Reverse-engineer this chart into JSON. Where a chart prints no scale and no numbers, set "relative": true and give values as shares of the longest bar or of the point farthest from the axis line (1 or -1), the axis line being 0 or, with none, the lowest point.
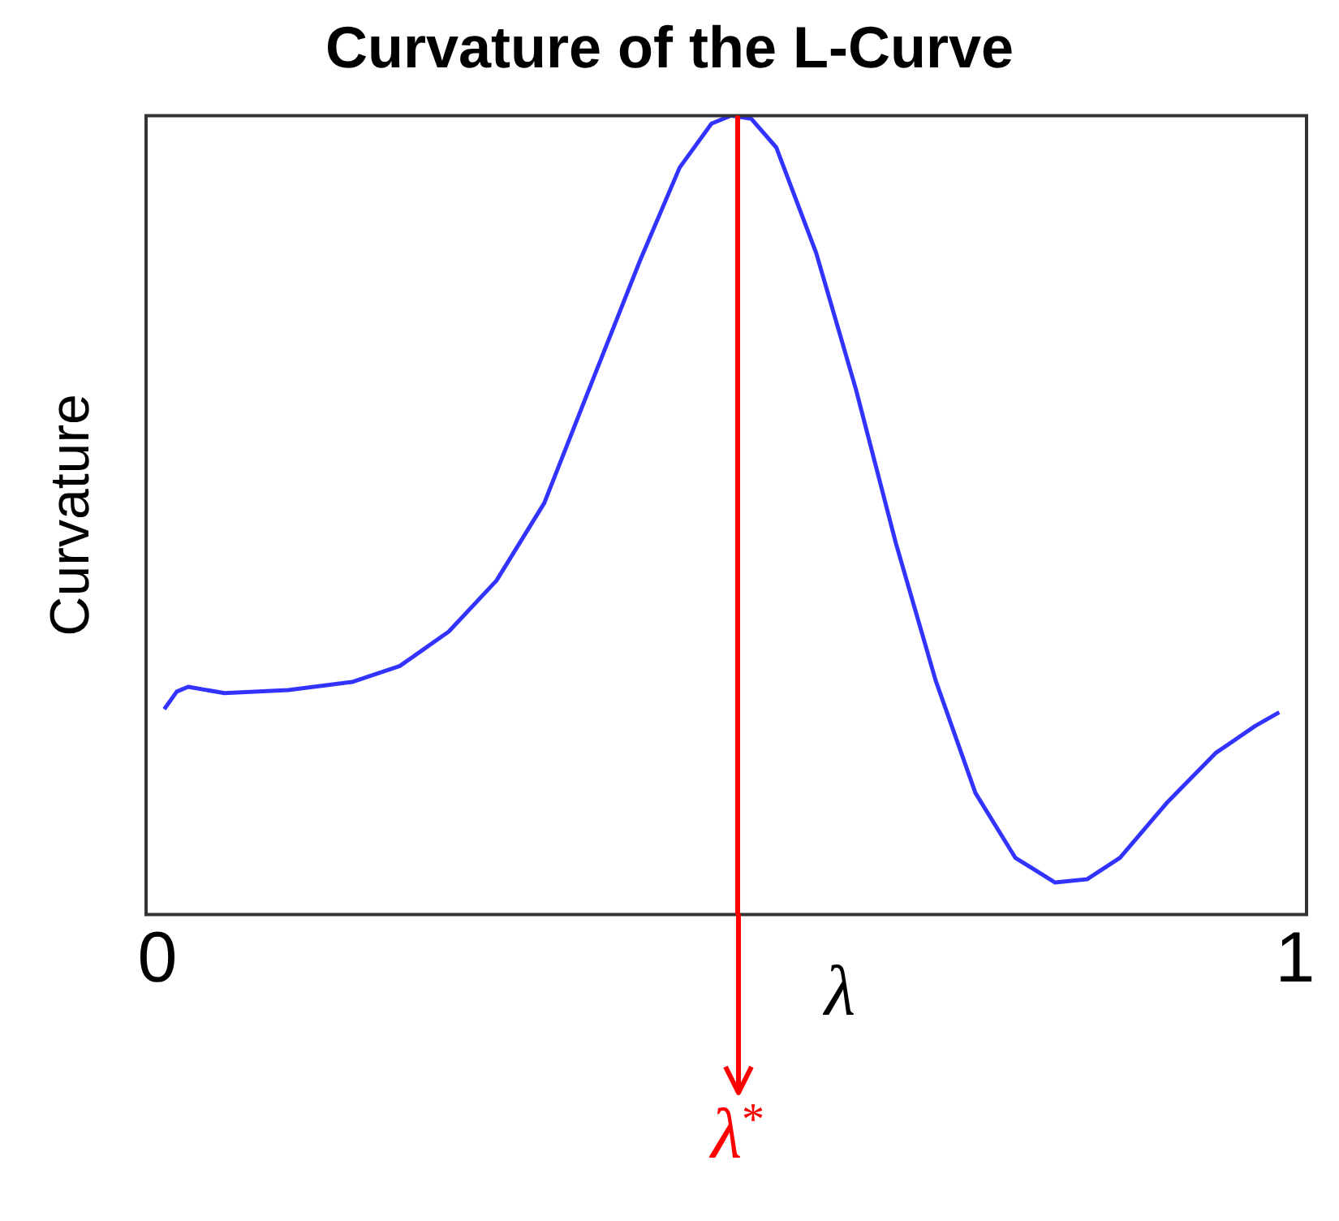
{
  "chart_data": {
    "type": "line",
    "title": "Curvature of the L-Curve",
    "xlabel": "λ",
    "ylabel": "Curvature",
    "relative": true,
    "xlim": [
      -0.01,
      1.01
    ],
    "xticks": [
      0,
      1
    ],
    "grid": false,
    "legend": false,
    "marker": "none",
    "line_style": "solid",
    "series": [
      {
        "color": "#3333ff",
        "x": [
          0.006,
          0.017,
          0.027,
          0.059,
          0.115,
          0.171,
          0.213,
          0.256,
          0.298,
          0.34,
          0.382,
          0.424,
          0.459,
          0.487,
          0.504,
          0.522,
          0.544,
          0.579,
          0.614,
          0.649,
          0.684,
          0.719,
          0.754,
          0.789,
          0.817,
          0.846,
          0.888,
          0.93,
          0.965,
          0.986
        ],
        "values": [
          0.257,
          0.279,
          0.285,
          0.277,
          0.281,
          0.291,
          0.311,
          0.354,
          0.418,
          0.515,
          0.667,
          0.818,
          0.935,
          0.99,
          1.0,
          0.996,
          0.96,
          0.828,
          0.657,
          0.465,
          0.293,
          0.152,
          0.071,
          0.04,
          0.044,
          0.071,
          0.141,
          0.202,
          0.236,
          0.253
        ]
      }
    ],
    "ref_lines": [
      {
        "axis": "x",
        "value": 0.51,
        "label": "λ$^{*}$",
        "color": "#ff0000"
      }
    ]
  }
}
